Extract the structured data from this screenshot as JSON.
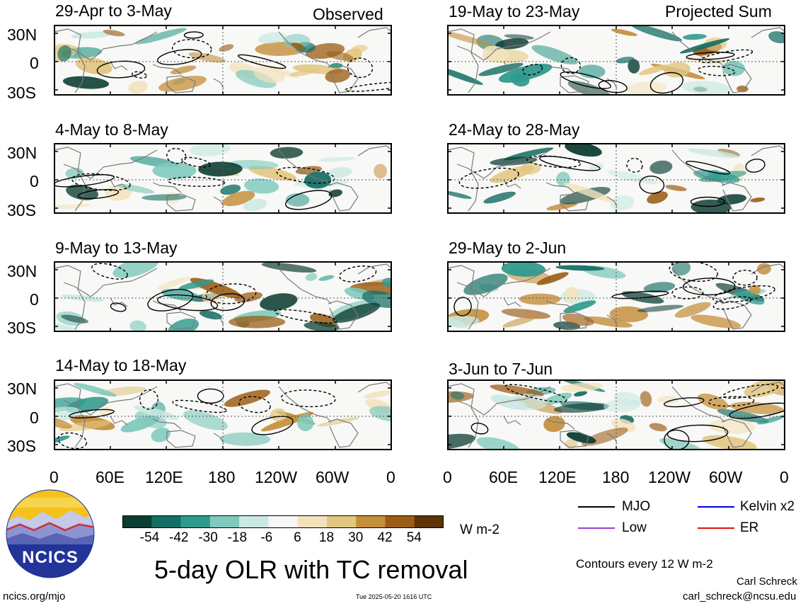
{
  "labels": {
    "observed": "Observed",
    "projected": "Projected Sum"
  },
  "panels": {
    "left": [
      {
        "title": "29-Apr to 3-May"
      },
      {
        "title": "4-May to 8-May"
      },
      {
        "title": "9-May to 13-May"
      },
      {
        "title": "14-May to 18-May"
      }
    ],
    "right": [
      {
        "title": "19-May to 23-May"
      },
      {
        "title": "24-May to 28-May"
      },
      {
        "title": "29-May to 2-Jun"
      },
      {
        "title": "3-Jun to 7-Jun"
      }
    ]
  },
  "axes": {
    "y_ticks": [
      "30N",
      "0",
      "30S"
    ],
    "x_ticks": [
      "0",
      "60E",
      "120E",
      "180",
      "120W",
      "60W",
      "0"
    ]
  },
  "colorbar": {
    "colors": [
      "#0b3d33",
      "#136e64",
      "#2e9a8c",
      "#7fc9bc",
      "#c9e9e2",
      "#f6f6f6",
      "#f3e3bd",
      "#e2c681",
      "#c48f3d",
      "#9b5d16",
      "#5b3508"
    ],
    "ticks": [
      "-54",
      "-42",
      "-30",
      "-18",
      "-6",
      "6",
      "18",
      "30",
      "42",
      "54"
    ],
    "units": "W m-2"
  },
  "legend": {
    "items": [
      {
        "label": "MJO",
        "color": "#000000"
      },
      {
        "label": "Kelvin x2",
        "color": "#0000ee"
      },
      {
        "label": "Low",
        "color": "#9b3fd6"
      },
      {
        "label": "ER",
        "color": "#dd1111"
      }
    ],
    "contours_note": "Contours every 12 W m-2"
  },
  "footer": {
    "title": "5-day OLR with TC removal",
    "website": "ncics.org/mjo",
    "timestamp": "Tue 2025-05-20 1616 UTC",
    "author": "Carl Schreck",
    "email": "carl_schreck@ncsu.edu",
    "logo_text": "NCICS"
  }
}
